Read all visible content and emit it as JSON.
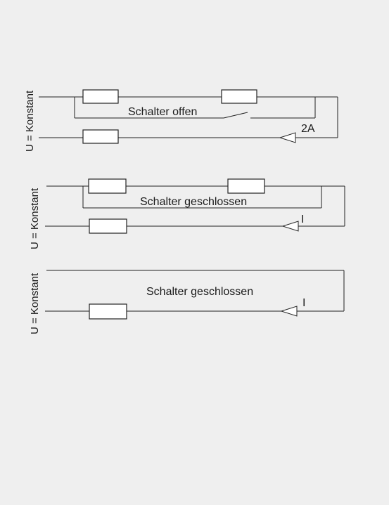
{
  "circuits": [
    {
      "voltage_label": "U = Konstant",
      "switch_label": "Schalter offen",
      "current_label": "2A"
    },
    {
      "voltage_label": "U = Konstant",
      "switch_label": "Schalter geschlossen",
      "current_label": "I"
    },
    {
      "voltage_label": "U = Konstant",
      "switch_label": "Schalter geschlossen",
      "current_label": "I"
    }
  ]
}
